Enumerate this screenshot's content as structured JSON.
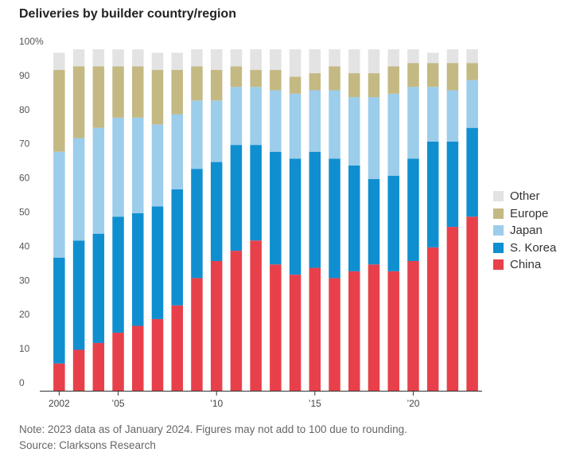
{
  "chart_data": {
    "type": "stacked-bar",
    "title": "Deliveries by builder country/region",
    "xlabel": "",
    "ylabel": "",
    "ylim": [
      0,
      100
    ],
    "y_ticks": [
      "100%",
      "90",
      "80",
      "70",
      "60",
      "50",
      "40",
      "30",
      "20",
      "10",
      "0"
    ],
    "categories": [
      "2002",
      "2003",
      "2004",
      "2005",
      "2006",
      "2007",
      "2008",
      "2009",
      "2010",
      "2011",
      "2012",
      "2013",
      "2014",
      "2015",
      "2016",
      "2017",
      "2018",
      "2019",
      "2020",
      "2021",
      "2022",
      "2023"
    ],
    "x_tick_labels": {
      "2002": "2002",
      "2005": "’05",
      "2010": "’10",
      "2015": "’15",
      "2020": "’20"
    },
    "series": [
      {
        "name": "China",
        "color": "#e8404a",
        "values": [
          8,
          12,
          14,
          17,
          19,
          21,
          25,
          33,
          38,
          41,
          44,
          37,
          34,
          36,
          33,
          35,
          37,
          35,
          38,
          42,
          48,
          51
        ]
      },
      {
        "name": "S. Korea",
        "color": "#0f8fd0",
        "values": [
          31,
          32,
          32,
          34,
          33,
          33,
          34,
          32,
          29,
          31,
          28,
          33,
          34,
          34,
          35,
          31,
          25,
          28,
          30,
          31,
          25,
          26
        ]
      },
      {
        "name": "Japan",
        "color": "#9ccdeb",
        "values": [
          31,
          30,
          31,
          29,
          28,
          24,
          22,
          20,
          18,
          17,
          17,
          18,
          19,
          18,
          20,
          20,
          24,
          24,
          21,
          16,
          15,
          14
        ]
      },
      {
        "name": "Europe",
        "color": "#c4b983",
        "values": [
          24,
          21,
          18,
          15,
          15,
          16,
          13,
          10,
          9,
          6,
          5,
          6,
          5,
          5,
          7,
          7,
          7,
          8,
          7,
          7,
          8,
          5
        ]
      },
      {
        "name": "Other",
        "color": "#e3e3e3",
        "values": [
          5,
          5,
          5,
          5,
          5,
          5,
          5,
          5,
          6,
          5,
          6,
          6,
          8,
          7,
          5,
          7,
          7,
          5,
          4,
          3,
          4,
          4
        ]
      }
    ],
    "legend_order": [
      "Other",
      "Europe",
      "Japan",
      "S. Korea",
      "China"
    ],
    "legend_position": "right",
    "grid": false
  },
  "footnote": {
    "note": "Note: 2023 data as of January 2024. Figures may not add to 100 due to rounding.",
    "source": "Source: Clarksons Research"
  }
}
